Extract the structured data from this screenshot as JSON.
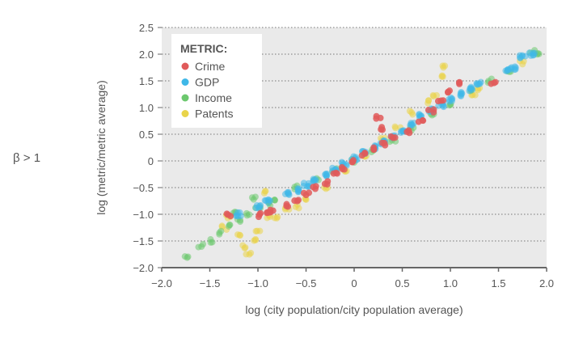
{
  "side_label": "β > 1",
  "chart_data": {
    "type": "scatter",
    "xlabel": "log (city population/city population average)",
    "ylabel": "log (metric/metric average)",
    "xlim": [
      -2.0,
      2.0
    ],
    "ylim": [
      -2.0,
      2.5
    ],
    "xticks": [
      "−2.0",
      "−1.5",
      "−1.0",
      "−0.5",
      "0",
      "0.5",
      "1.0",
      "1.5",
      "2.0"
    ],
    "yticks": [
      "2.5",
      "2.0",
      "1.5",
      "1.0",
      "0.5",
      "0",
      "−0.5",
      "−1.0",
      "−1.5",
      "−2.0"
    ],
    "grid": "horizontal dotted",
    "legend": {
      "title": "METRIC:",
      "placement": "top-left",
      "entries": [
        "Crime",
        "GDP",
        "Income",
        "Patents"
      ]
    },
    "series": [
      {
        "name": "Crime",
        "color": "#e05a5a",
        "points": [
          [
            -1.3,
            -1.0
          ],
          [
            -1.0,
            -1.02
          ],
          [
            -0.85,
            -0.95
          ],
          [
            -0.7,
            -0.85
          ],
          [
            -0.6,
            -0.72
          ],
          [
            -0.5,
            -0.6
          ],
          [
            -0.4,
            -0.5
          ],
          [
            -0.3,
            -0.4
          ],
          [
            -0.2,
            -0.25
          ],
          [
            -0.1,
            -0.12
          ],
          [
            0.0,
            0.0
          ],
          [
            0.1,
            0.12
          ],
          [
            0.2,
            0.22
          ],
          [
            0.3,
            0.3
          ],
          [
            0.4,
            0.42
          ],
          [
            0.55,
            0.55
          ],
          [
            0.7,
            0.75
          ],
          [
            0.8,
            0.95
          ],
          [
            0.9,
            1.1
          ],
          [
            1.0,
            1.3
          ],
          [
            1.1,
            1.48
          ],
          [
            1.45,
            1.45
          ],
          [
            0.3,
            0.62
          ],
          [
            0.25,
            0.8
          ],
          [
            -0.9,
            -0.95
          ]
        ]
      },
      {
        "name": "GDP",
        "color": "#3fb8e8",
        "points": [
          [
            -1.2,
            -1.0
          ],
          [
            -1.0,
            -0.85
          ],
          [
            -0.9,
            -0.75
          ],
          [
            -0.7,
            -0.6
          ],
          [
            -0.6,
            -0.55
          ],
          [
            -0.5,
            -0.45
          ],
          [
            -0.4,
            -0.35
          ],
          [
            -0.3,
            -0.28
          ],
          [
            -0.2,
            -0.15
          ],
          [
            -0.1,
            -0.05
          ],
          [
            0.0,
            0.05
          ],
          [
            0.1,
            0.15
          ],
          [
            0.2,
            0.25
          ],
          [
            0.3,
            0.35
          ],
          [
            0.4,
            0.45
          ],
          [
            0.5,
            0.55
          ],
          [
            0.6,
            0.7
          ],
          [
            0.7,
            0.85
          ],
          [
            0.8,
            0.95
          ],
          [
            0.9,
            1.05
          ],
          [
            1.0,
            1.15
          ],
          [
            1.1,
            1.25
          ],
          [
            1.2,
            1.35
          ],
          [
            1.3,
            1.45
          ],
          [
            1.6,
            1.7
          ],
          [
            1.75,
            1.95
          ],
          [
            1.85,
            2.0
          ],
          [
            1.65,
            1.75
          ]
        ]
      },
      {
        "name": "Income",
        "color": "#6cc86e",
        "points": [
          [
            -1.75,
            -1.8
          ],
          [
            -1.6,
            -1.6
          ],
          [
            -1.5,
            -1.5
          ],
          [
            -1.4,
            -1.35
          ],
          [
            -1.3,
            -1.2
          ],
          [
            -1.2,
            -1.1
          ],
          [
            -1.1,
            -1.0
          ],
          [
            -1.0,
            -0.9
          ],
          [
            -0.9,
            -0.8
          ],
          [
            -0.8,
            -0.7
          ],
          [
            -0.6,
            -0.5
          ],
          [
            -0.4,
            -0.35
          ],
          [
            -0.2,
            -0.18
          ],
          [
            0.0,
            0.0
          ],
          [
            0.2,
            0.2
          ],
          [
            0.4,
            0.4
          ],
          [
            0.6,
            0.6
          ],
          [
            0.8,
            0.85
          ],
          [
            1.0,
            1.05
          ],
          [
            1.2,
            1.3
          ],
          [
            1.4,
            1.5
          ],
          [
            1.6,
            1.65
          ],
          [
            1.85,
            2.05
          ],
          [
            1.9,
            2.0
          ],
          [
            -1.25,
            -0.95
          ],
          [
            -1.05,
            -0.7
          ]
        ]
      },
      {
        "name": "Patents",
        "color": "#e9d44a",
        "points": [
          [
            -1.3,
            -1.05
          ],
          [
            -1.2,
            -1.4
          ],
          [
            -1.15,
            -1.6
          ],
          [
            -1.1,
            -1.75
          ],
          [
            -1.05,
            -1.5
          ],
          [
            -1.0,
            -1.3
          ],
          [
            -0.9,
            -1.05
          ],
          [
            -0.8,
            -1.05
          ],
          [
            -0.6,
            -0.85
          ],
          [
            -0.5,
            -0.7
          ],
          [
            -0.3,
            -0.5
          ],
          [
            -0.1,
            -0.2
          ],
          [
            0.1,
            0.1
          ],
          [
            0.3,
            0.4
          ],
          [
            0.45,
            0.65
          ],
          [
            0.6,
            0.9
          ],
          [
            0.75,
            1.1
          ],
          [
            0.85,
            1.25
          ],
          [
            0.9,
            1.6
          ],
          [
            0.95,
            1.75
          ],
          [
            1.25,
            1.2
          ],
          [
            1.3,
            1.35
          ],
          [
            1.75,
            1.85
          ],
          [
            -1.35,
            -1.25
          ],
          [
            -0.95,
            -0.6
          ],
          [
            -0.7,
            -0.9
          ]
        ]
      }
    ]
  }
}
